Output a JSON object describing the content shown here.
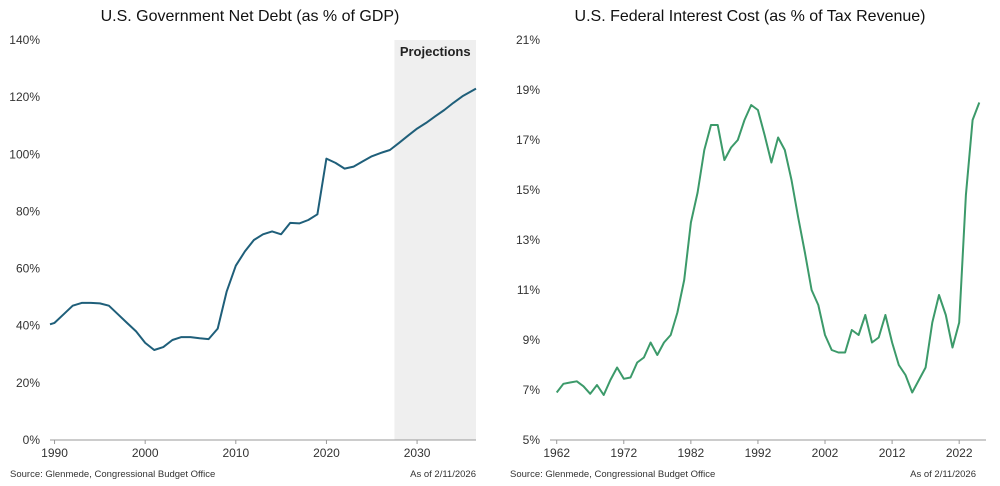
{
  "chart_data": [
    {
      "type": "line",
      "title": "U.S. Government Net Debt (as % of GDP)",
      "source": "Source: Glenmede, Congressional Budget Office",
      "as_of": "As of 2/11/2026",
      "shaded_region": {
        "label": "Projections",
        "x_start": 2027.5,
        "x_end": 2036.5,
        "color": "#efefef"
      },
      "x_ticks": [
        1990,
        2000,
        2010,
        2020,
        2030
      ],
      "y_ticks": [
        0,
        20,
        40,
        60,
        80,
        100,
        120,
        140
      ],
      "y_tick_suffix": "%",
      "xlim": [
        1989.5,
        2036.5
      ],
      "ylim": [
        0,
        140
      ],
      "series": [
        {
          "color": "#1f5f7a",
          "x": [
            1989.5,
            1990,
            1991,
            1992,
            1993,
            1994,
            1995,
            1996,
            1997,
            1998,
            1999,
            2000,
            2001,
            2002,
            2003,
            2004,
            2005,
            2006,
            2007,
            2008,
            2009,
            2010,
            2011,
            2012,
            2013,
            2014,
            2015,
            2016,
            2017,
            2018,
            2019,
            2020,
            2021,
            2022,
            2023,
            2024,
            2025,
            2026,
            2027,
            2028,
            2029,
            2030,
            2031,
            2032,
            2033,
            2034,
            2035,
            2036.5
          ],
          "y": [
            40.5,
            41,
            44,
            47,
            48,
            48,
            47.8,
            47,
            44,
            41,
            38,
            34,
            31.5,
            32.5,
            35,
            36,
            36,
            35.6,
            35.3,
            39,
            52,
            61,
            66,
            70,
            72,
            73,
            72,
            76,
            75.8,
            77,
            79,
            98.5,
            97,
            95,
            95.7,
            97.5,
            99.3,
            100.5,
            101.5,
            104,
            106.5,
            109,
            111,
            113.3,
            115.5,
            118,
            120.3,
            123
          ]
        }
      ]
    },
    {
      "type": "line",
      "title": "U.S. Federal Interest Cost (as % of Tax Revenue)",
      "source": "Source: Glenmede, Congressional Budget Office",
      "as_of": "As of 2/11/2026",
      "x_ticks": [
        1962,
        1972,
        1982,
        1992,
        2002,
        2012,
        2022
      ],
      "y_ticks": [
        5,
        7,
        9,
        11,
        13,
        15,
        17,
        19,
        21
      ],
      "y_tick_suffix": "%",
      "xlim": [
        1961,
        2026
      ],
      "ylim": [
        5,
        21
      ],
      "series": [
        {
          "color": "#3c9a6a",
          "x": [
            1962,
            1963,
            1964,
            1965,
            1966,
            1967,
            1968,
            1969,
            1970,
            1971,
            1972,
            1973,
            1974,
            1975,
            1976,
            1977,
            1978,
            1979,
            1980,
            1981,
            1982,
            1983,
            1984,
            1985,
            1986,
            1987,
            1988,
            1989,
            1990,
            1991,
            1992,
            1993,
            1994,
            1995,
            1996,
            1997,
            1998,
            1999,
            2000,
            2001,
            2002,
            2003,
            2004,
            2005,
            2006,
            2007,
            2008,
            2009,
            2010,
            2011,
            2012,
            2013,
            2014,
            2015,
            2016,
            2017,
            2018,
            2019,
            2020,
            2021,
            2022,
            2023,
            2024,
            2025
          ],
          "y": [
            6.9,
            7.25,
            7.3,
            7.35,
            7.15,
            6.85,
            7.2,
            6.8,
            7.4,
            7.9,
            7.45,
            7.5,
            8.1,
            8.3,
            8.9,
            8.4,
            8.9,
            9.2,
            10.1,
            11.4,
            13.7,
            14.9,
            16.6,
            17.6,
            17.6,
            16.2,
            16.7,
            17.0,
            17.8,
            18.4,
            18.2,
            17.2,
            16.1,
            17.1,
            16.6,
            15.4,
            13.9,
            12.5,
            11.0,
            10.4,
            9.2,
            8.6,
            8.5,
            8.5,
            9.4,
            9.2,
            10.0,
            8.9,
            9.1,
            10.0,
            8.9,
            8.0,
            7.6,
            6.9,
            7.4,
            7.9,
            9.7,
            10.8,
            10.0,
            8.7,
            9.7,
            14.8,
            17.8,
            18.5
          ]
        }
      ]
    }
  ]
}
